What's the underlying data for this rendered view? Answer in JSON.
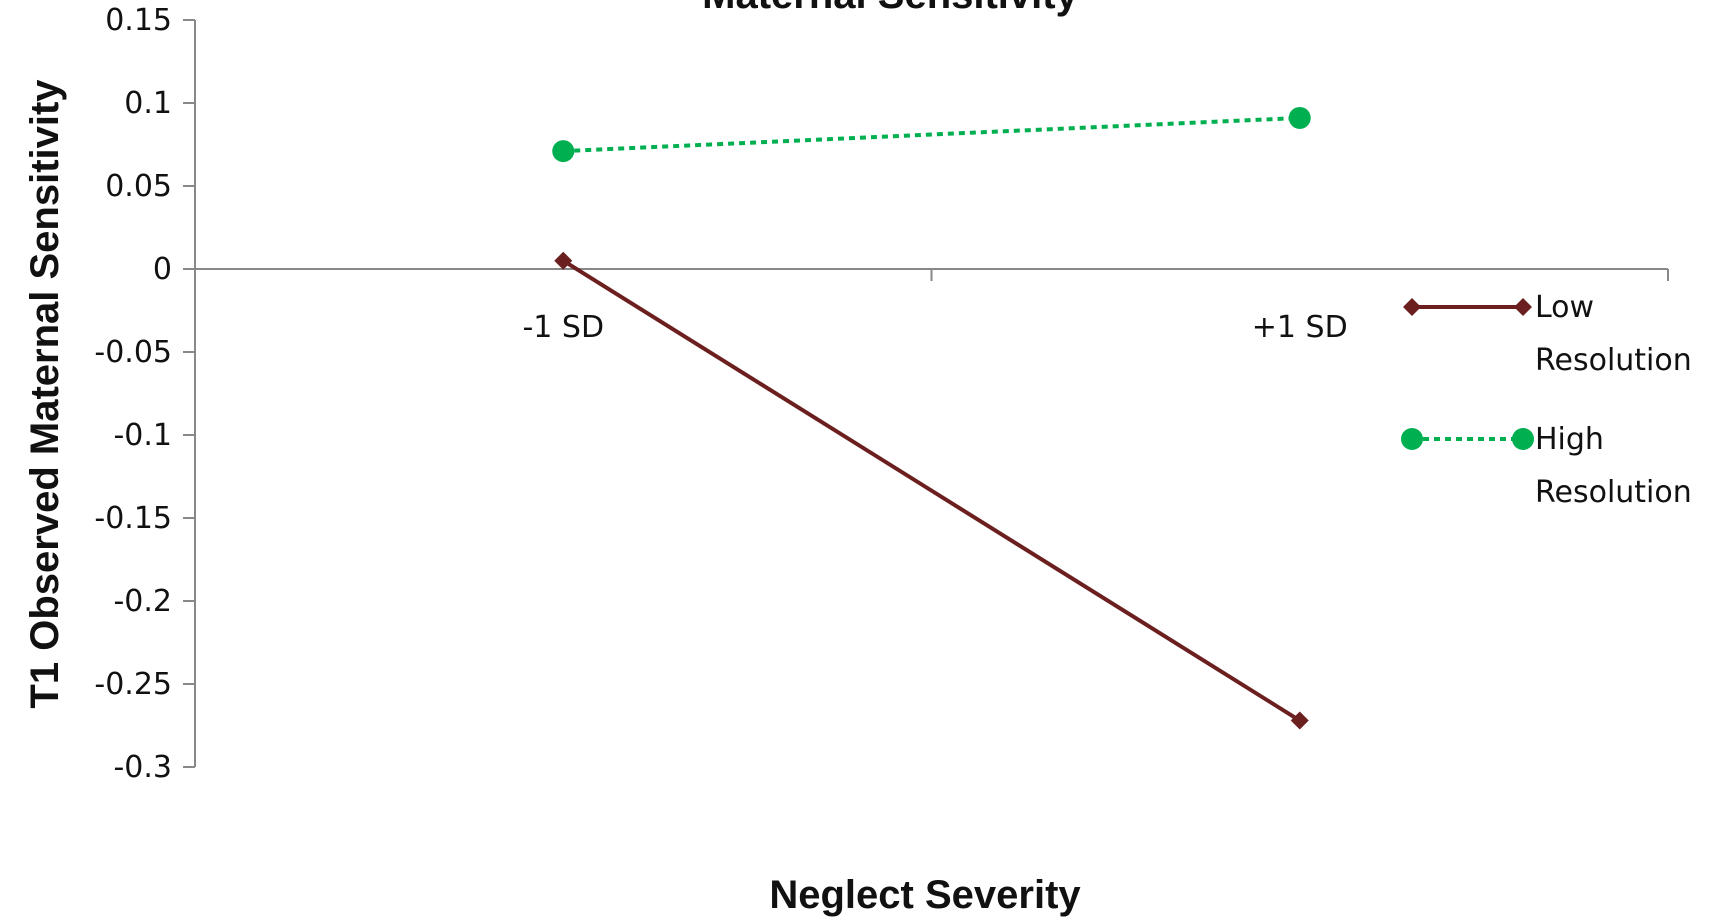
{
  "chart_data": {
    "type": "line",
    "title": "Maternal Sensitivity",
    "xlabel": "Neglect Severity",
    "ylabel": "T1 Observed Maternal Sensitivity",
    "categories": [
      "-1 SD",
      "+1 SD"
    ],
    "y_ticks": [
      "0.15",
      "0.1",
      "0.05",
      "0",
      "-0.05",
      "-0.1",
      "-0.15",
      "-0.2",
      "-0.25",
      "-0.3"
    ],
    "ylim": [
      -0.3,
      0.15
    ],
    "grid": false,
    "legend_position": "right",
    "series": [
      {
        "name": "Low Resolution",
        "legend_lines": [
          "Low",
          "Resolution"
        ],
        "values": [
          0.005,
          -0.272
        ],
        "color": "#6b1f1f",
        "marker": "diamond",
        "dash": "solid"
      },
      {
        "name": "High Resolution",
        "legend_lines": [
          "High",
          "Resolution"
        ],
        "values": [
          0.071,
          0.091
        ],
        "color": "#00b050",
        "marker": "circle",
        "dash": "dotted"
      }
    ]
  }
}
